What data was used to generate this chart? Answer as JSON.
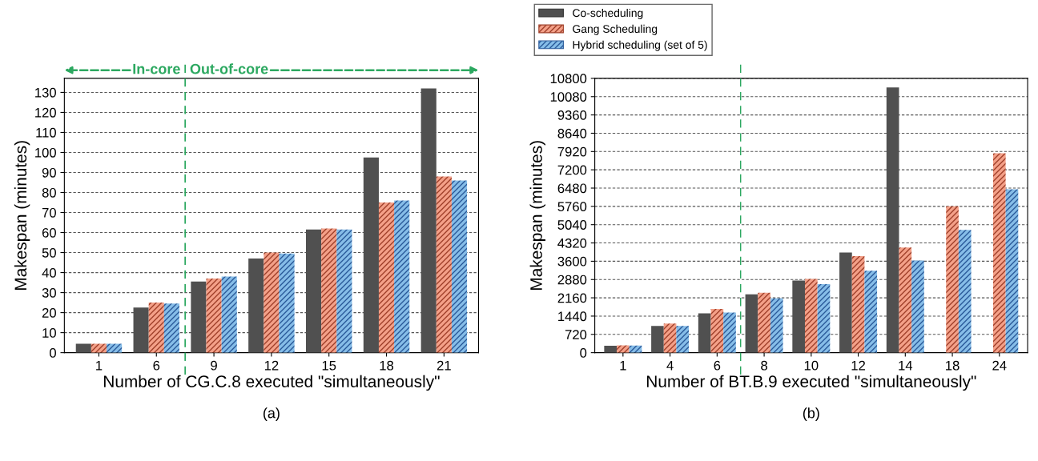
{
  "chart_data": [
    {
      "type": "bar",
      "xlabel": "Number of CG.C.8 executed \"simultaneously\"",
      "ylabel": "Makespan (minutes)",
      "categories": [
        "1",
        "6",
        "9",
        "12",
        "15",
        "18",
        "21"
      ],
      "series": [
        {
          "name": "Co-scheduling",
          "color": "#505050",
          "values": [
            4.5,
            22.5,
            35.5,
            47,
            61.5,
            97.5,
            132
          ]
        },
        {
          "name": "Gang Scheduling",
          "color": "#f4a088",
          "values": [
            4.5,
            25,
            37,
            50,
            62,
            75,
            88
          ]
        },
        {
          "name": "Hybrid scheduling (set of 5)",
          "color": "#86bde8",
          "values": [
            4.5,
            24.5,
            38,
            49.5,
            61.5,
            76,
            86
          ]
        }
      ],
      "ylim": [
        0,
        137
      ],
      "yticks": [
        0,
        10,
        20,
        30,
        40,
        50,
        60,
        70,
        80,
        90,
        100,
        110,
        120,
        130
      ],
      "grid": "y",
      "legend": "top right",
      "annotations": [
        "In-core",
        "Out-of-core",
        "(a)"
      ]
    },
    {
      "type": "bar",
      "xlabel": "Number of BT.B.9 executed \"simultaneously\"",
      "ylabel": "Makespan (minutes)",
      "categories": [
        "1",
        "4",
        "6",
        "8",
        "10",
        "12",
        "14",
        "18",
        "24"
      ],
      "series": [
        {
          "color": "#505050",
          "values": [
            270,
            1050,
            1550,
            2300,
            2840,
            3940,
            10440,
            null,
            null
          ]
        },
        {
          "color": "#f4a088",
          "values": [
            290,
            1150,
            1720,
            2360,
            2900,
            3800,
            4140,
            5760,
            7850
          ]
        },
        {
          "color": "#86bde8",
          "values": [
            280,
            1050,
            1580,
            2140,
            2700,
            3230,
            3630,
            4830,
            6430
          ]
        }
      ],
      "ylim": [
        0,
        10800
      ],
      "yticks": [
        0,
        720,
        1440,
        2160,
        2880,
        3600,
        4320,
        5040,
        5760,
        6480,
        7200,
        7920,
        8640,
        9360,
        10080,
        10800
      ],
      "grid": "y",
      "annotations": [
        "(b)"
      ]
    }
  ]
}
